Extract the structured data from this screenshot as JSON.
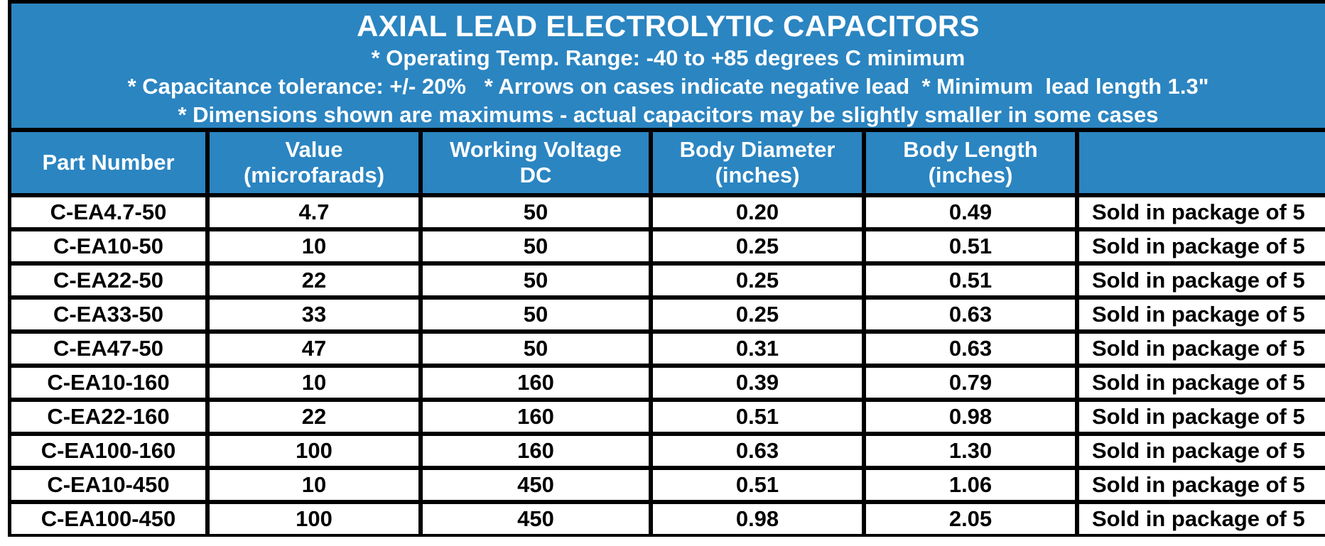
{
  "banner": {
    "title": "AXIAL LEAD ELECTROLYTIC CAPACITORS",
    "line1": "* Operating Temp. Range: -40 to +85 degrees C minimum",
    "line2": "* Capacitance tolerance: +/- 20%   * Arrows on cases indicate negative lead  * Minimum  lead length 1.3\"",
    "line3": "* Dimensions shown are maximums - actual capacitors may be slightly smaller in some cases"
  },
  "table": {
    "headers": [
      [
        "Part Number"
      ],
      [
        "Value",
        "(microfarads)"
      ],
      [
        "Working Voltage",
        "DC"
      ],
      [
        "Body Diameter",
        "(inches)"
      ],
      [
        "Body Length",
        "(inches)"
      ],
      [
        ""
      ]
    ],
    "rows": [
      [
        "C-EA4.7-50",
        "4.7",
        "50",
        "0.20",
        "0.49",
        "Sold in package of 5"
      ],
      [
        "C-EA10-50",
        "10",
        "50",
        "0.25",
        "0.51",
        "Sold in package of 5"
      ],
      [
        "C-EA22-50",
        "22",
        "50",
        "0.25",
        "0.51",
        "Sold in package of 5"
      ],
      [
        "C-EA33-50",
        "33",
        "50",
        "0.25",
        "0.63",
        "Sold in package of 5"
      ],
      [
        "C-EA47-50",
        "47",
        "50",
        "0.31",
        "0.63",
        "Sold in package of 5"
      ],
      [
        "C-EA10-160",
        "10",
        "160",
        "0.39",
        "0.79",
        "Sold in package of 5"
      ],
      [
        "C-EA22-160",
        "22",
        "160",
        "0.51",
        "0.98",
        "Sold in package of 5"
      ],
      [
        "C-EA100-160",
        "100",
        "160",
        "0.63",
        "1.30",
        "Sold in package of 5"
      ],
      [
        "C-EA10-450",
        "10",
        "450",
        "0.51",
        "1.06",
        "Sold in package of 5"
      ],
      [
        "C-EA100-450",
        "100",
        "450",
        "0.98",
        "2.05",
        "Sold in package of 5"
      ]
    ]
  },
  "colors": {
    "header_blue": "#2b85c1",
    "grid_line": "#000000",
    "cell_bg": "#ffffff"
  }
}
